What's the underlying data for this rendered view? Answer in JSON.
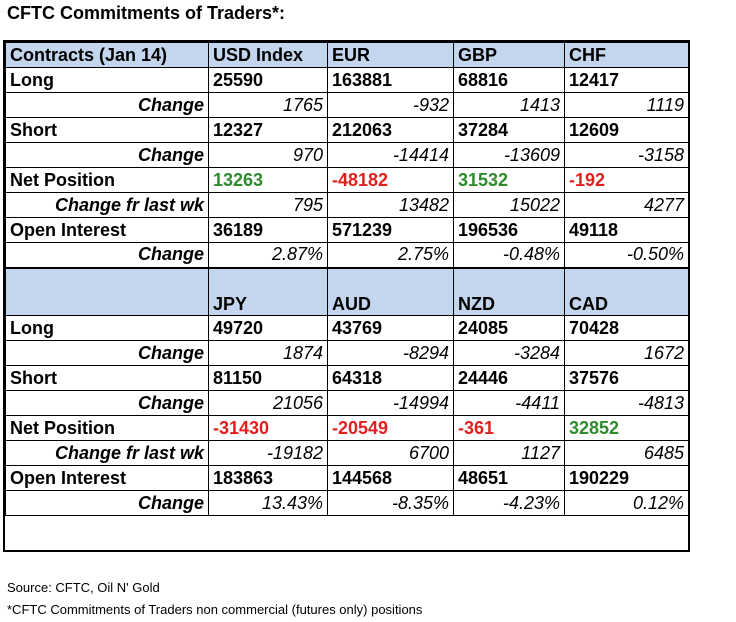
{
  "title": "CFTC Commitments of Traders*:",
  "colors": {
    "header_bg": "#c3d6ed",
    "positive": "#2e8b2e",
    "negative": "#e01f1f"
  },
  "table1": {
    "header": [
      "Contracts (Jan 14)",
      "USD Index",
      "EUR",
      "GBP",
      "CHF"
    ],
    "rows": [
      {
        "kind": "main",
        "label": "Long",
        "values": [
          "25590",
          "163881",
          "68816",
          "12417"
        ]
      },
      {
        "kind": "sub",
        "label": "Change",
        "values": [
          "1765",
          "-932",
          "1413",
          "1119"
        ]
      },
      {
        "kind": "main",
        "label": "Short",
        "values": [
          "12327",
          "212063",
          "37284",
          "12609"
        ]
      },
      {
        "kind": "sub",
        "label": "Change",
        "values": [
          "970",
          "-14414",
          "-13609",
          "-3158"
        ]
      },
      {
        "kind": "net",
        "label": "Net Position",
        "values": [
          "13263",
          "-48182",
          "31532",
          "-192"
        ]
      },
      {
        "kind": "sub",
        "label": "Change fr last wk",
        "values": [
          "795",
          "13482",
          "15022",
          "4277"
        ]
      },
      {
        "kind": "main",
        "label": "Open Interest",
        "values": [
          "36189",
          "571239",
          "196536",
          "49118"
        ]
      },
      {
        "kind": "sub",
        "label": "Change",
        "values": [
          "2.87%",
          "2.75%",
          "-0.48%",
          "-0.50%"
        ]
      }
    ]
  },
  "table2": {
    "header": [
      "",
      "JPY",
      "AUD",
      "NZD",
      "CAD"
    ],
    "rows": [
      {
        "kind": "main",
        "label": "Long",
        "values": [
          "49720",
          "43769",
          "24085",
          "70428"
        ]
      },
      {
        "kind": "sub",
        "label": "Change",
        "values": [
          "1874",
          "-8294",
          "-3284",
          "1672"
        ]
      },
      {
        "kind": "main",
        "label": "Short",
        "values": [
          "81150",
          "64318",
          "24446",
          "37576"
        ]
      },
      {
        "kind": "sub",
        "label": "Change",
        "values": [
          "21056",
          "-14994",
          "-4411",
          "-4813"
        ]
      },
      {
        "kind": "net",
        "label": "Net Position",
        "values": [
          "-31430",
          "-20549",
          "-361",
          "32852"
        ]
      },
      {
        "kind": "sub",
        "label": "Change fr last wk",
        "values": [
          "-19182",
          "6700",
          "1127",
          "6485"
        ]
      },
      {
        "kind": "main",
        "label": "Open Interest",
        "values": [
          "183863",
          "144568",
          "48651",
          "190229"
        ]
      },
      {
        "kind": "sub",
        "label": "Change",
        "values": [
          "13.43%",
          "-8.35%",
          "-4.23%",
          "0.12%"
        ]
      }
    ]
  },
  "footer": {
    "source": "Source: CFTC, Oil N' Gold",
    "note": "*CFTC Commitments of Traders non commercial (futures only) positions"
  }
}
